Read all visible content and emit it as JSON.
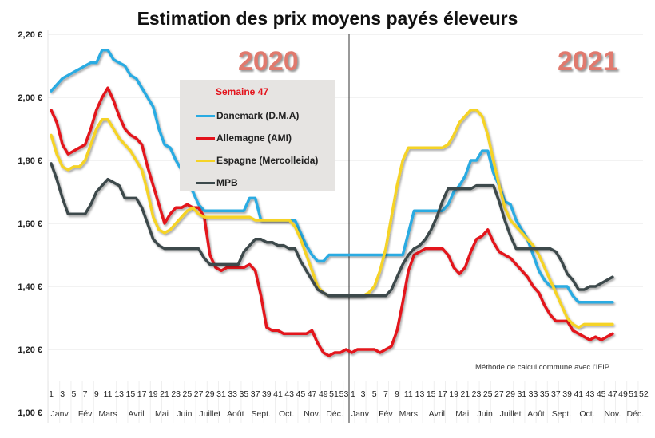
{
  "chart_data": {
    "type": "line",
    "title": "Estimation des prix moyens payés éleveurs",
    "year_labels": [
      "2020",
      "2021"
    ],
    "ylim": [
      1.0,
      2.2
    ],
    "yticks": [
      "1,00 €",
      "1,20 €",
      "1,40 €",
      "1,60 €",
      "1,80 €",
      "2,00 €",
      "2,20 €"
    ],
    "grid": "horizontal",
    "xticks_2020": [
      "1",
      "3",
      "5",
      "7",
      "9",
      "11",
      "13",
      "15",
      "17",
      "19",
      "21",
      "23",
      "25",
      "27",
      "29",
      "31",
      "33",
      "35",
      "37",
      "39",
      "41",
      "43",
      "45",
      "47",
      "49",
      "51",
      "53"
    ],
    "xticks_2021": [
      "1",
      "3",
      "5",
      "7",
      "9",
      "11",
      "13",
      "15",
      "17",
      "19",
      "21",
      "23",
      "25",
      "27",
      "29",
      "31",
      "33",
      "35",
      "37",
      "39",
      "41",
      "43",
      "45",
      "47",
      "49",
      "51",
      "52"
    ],
    "months": [
      "Janv",
      "Fév",
      "Mars",
      "Avril",
      "Mai",
      "Juin",
      "Juillet",
      "Août",
      "Sept.",
      "Oct.",
      "Nov.",
      "Déc."
    ],
    "legend_title": "Semaine 47",
    "legend_placement": "top-center",
    "note": "Méthode de calcul commune avec l'IFIP",
    "series": [
      {
        "name": "Danemark (D.M.A)",
        "color": "#29abe2",
        "values_2020": [
          2.02,
          2.04,
          2.06,
          2.07,
          2.08,
          2.09,
          2.1,
          2.11,
          2.11,
          2.15,
          2.15,
          2.12,
          2.11,
          2.1,
          2.07,
          2.06,
          2.03,
          2.0,
          1.97,
          1.9,
          1.85,
          1.84,
          1.8,
          1.77,
          1.73,
          1.7,
          1.66,
          1.64,
          1.64,
          1.64,
          1.64,
          1.64,
          1.64,
          1.64,
          1.64,
          1.68,
          1.68,
          1.61,
          1.61,
          1.61,
          1.61,
          1.61,
          1.61,
          1.61,
          1.57,
          1.53,
          1.5,
          1.48,
          1.48,
          1.5,
          1.5,
          1.5,
          1.5
        ],
        "values_2021": [
          1.5,
          1.5,
          1.5,
          1.5,
          1.5,
          1.5,
          1.5,
          1.5,
          1.5,
          1.5,
          1.57,
          1.64,
          1.64,
          1.64,
          1.64,
          1.64,
          1.64,
          1.66,
          1.7,
          1.72,
          1.75,
          1.8,
          1.8,
          1.83,
          1.83,
          1.76,
          1.72,
          1.67,
          1.66,
          1.61,
          1.58,
          1.55,
          1.5,
          1.45,
          1.42,
          1.4,
          1.4,
          1.4,
          1.4,
          1.37,
          1.35,
          1.35,
          1.35,
          1.35,
          1.35,
          1.35,
          1.35
        ]
      },
      {
        "name": "Allemagne (AMI)",
        "color": "#e3121b",
        "values_2020": [
          1.96,
          1.92,
          1.85,
          1.82,
          1.83,
          1.84,
          1.85,
          1.9,
          1.96,
          2.0,
          2.03,
          1.99,
          1.94,
          1.9,
          1.88,
          1.87,
          1.85,
          1.78,
          1.72,
          1.66,
          1.6,
          1.63,
          1.65,
          1.65,
          1.66,
          1.65,
          1.65,
          1.62,
          1.5,
          1.46,
          1.45,
          1.46,
          1.46,
          1.46,
          1.46,
          1.47,
          1.45,
          1.37,
          1.27,
          1.26,
          1.26,
          1.25,
          1.25,
          1.25,
          1.25,
          1.25,
          1.26,
          1.22,
          1.19,
          1.18,
          1.19,
          1.19,
          1.2
        ],
        "values_2021": [
          1.19,
          1.2,
          1.2,
          1.2,
          1.2,
          1.19,
          1.2,
          1.21,
          1.26,
          1.35,
          1.45,
          1.5,
          1.51,
          1.52,
          1.52,
          1.52,
          1.52,
          1.5,
          1.46,
          1.44,
          1.46,
          1.51,
          1.55,
          1.56,
          1.58,
          1.54,
          1.51,
          1.5,
          1.49,
          1.47,
          1.45,
          1.43,
          1.4,
          1.38,
          1.34,
          1.31,
          1.29,
          1.29,
          1.29,
          1.26,
          1.25,
          1.24,
          1.23,
          1.24,
          1.23,
          1.24,
          1.25
        ]
      },
      {
        "name": "Espagne (Mercolleida)",
        "color": "#f5d327",
        "values_2020": [
          1.88,
          1.82,
          1.78,
          1.77,
          1.78,
          1.78,
          1.8,
          1.85,
          1.9,
          1.93,
          1.93,
          1.9,
          1.87,
          1.85,
          1.83,
          1.8,
          1.77,
          1.7,
          1.62,
          1.58,
          1.57,
          1.58,
          1.6,
          1.62,
          1.64,
          1.65,
          1.63,
          1.62,
          1.62,
          1.62,
          1.62,
          1.62,
          1.62,
          1.62,
          1.62,
          1.62,
          1.61,
          1.61,
          1.61,
          1.61,
          1.61,
          1.61,
          1.61,
          1.59,
          1.55,
          1.5,
          1.45,
          1.4,
          1.38,
          1.37,
          1.37,
          1.37,
          1.37
        ],
        "values_2021": [
          1.37,
          1.37,
          1.37,
          1.38,
          1.4,
          1.45,
          1.52,
          1.62,
          1.72,
          1.8,
          1.84,
          1.84,
          1.84,
          1.84,
          1.84,
          1.84,
          1.84,
          1.85,
          1.88,
          1.92,
          1.94,
          1.96,
          1.96,
          1.94,
          1.88,
          1.8,
          1.72,
          1.65,
          1.61,
          1.59,
          1.57,
          1.55,
          1.53,
          1.5,
          1.46,
          1.42,
          1.38,
          1.34,
          1.3,
          1.28,
          1.27,
          1.28,
          1.28,
          1.28,
          1.28,
          1.28,
          1.28
        ]
      },
      {
        "name": "MPB",
        "color": "#3d4a4c",
        "values_2020": [
          1.79,
          1.74,
          1.68,
          1.63,
          1.63,
          1.63,
          1.63,
          1.66,
          1.7,
          1.72,
          1.74,
          1.73,
          1.72,
          1.68,
          1.68,
          1.68,
          1.65,
          1.6,
          1.55,
          1.53,
          1.52,
          1.52,
          1.52,
          1.52,
          1.52,
          1.52,
          1.52,
          1.49,
          1.47,
          1.47,
          1.47,
          1.47,
          1.47,
          1.47,
          1.51,
          1.53,
          1.55,
          1.55,
          1.54,
          1.54,
          1.53,
          1.53,
          1.52,
          1.52,
          1.48,
          1.45,
          1.42,
          1.39,
          1.38,
          1.37,
          1.37,
          1.37,
          1.37
        ],
        "values_2021": [
          1.37,
          1.37,
          1.37,
          1.37,
          1.37,
          1.37,
          1.37,
          1.39,
          1.43,
          1.47,
          1.5,
          1.52,
          1.53,
          1.55,
          1.58,
          1.62,
          1.67,
          1.71,
          1.71,
          1.71,
          1.71,
          1.71,
          1.72,
          1.72,
          1.72,
          1.72,
          1.67,
          1.61,
          1.56,
          1.52,
          1.52,
          1.52,
          1.52,
          1.52,
          1.52,
          1.52,
          1.51,
          1.48,
          1.44,
          1.42,
          1.39,
          1.39,
          1.4,
          1.4,
          1.41,
          1.42,
          1.43
        ]
      }
    ]
  }
}
